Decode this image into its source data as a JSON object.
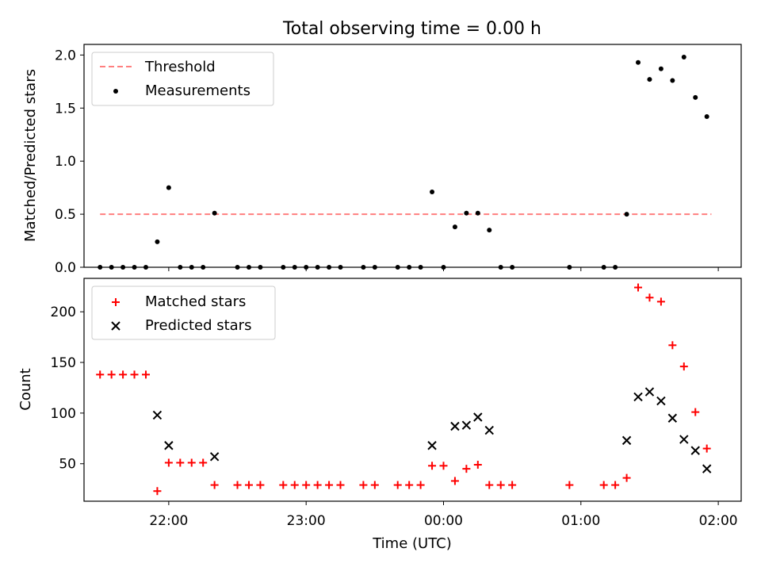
{
  "title": "Total observing time = 0.00 h",
  "chart_data": [
    {
      "type": "scatter",
      "ylabel": "Matched/Predicted stars",
      "ylim": [
        0,
        2.1
      ],
      "yticks": [
        0.0,
        0.5,
        1.0,
        1.5,
        2.0
      ],
      "ytick_labels": [
        "0.0",
        "0.5",
        "1.0",
        "1.5",
        "2.0"
      ],
      "xlim": [
        "21:23",
        "02:10"
      ],
      "legend_position": "upper-left",
      "legend": [
        {
          "label": "Threshold",
          "style": "dashed-line",
          "color": "#ff7f7f"
        },
        {
          "label": "Measurements",
          "style": "dot",
          "color": "#000000"
        }
      ],
      "threshold": {
        "value": 0.5,
        "x": [
          "21:30",
          "01:57"
        ]
      },
      "series": [
        {
          "name": "Measurements",
          "color": "#000000",
          "points": [
            [
              "21:30",
              0.0
            ],
            [
              "21:35",
              0.0
            ],
            [
              "21:40",
              0.0
            ],
            [
              "21:45",
              0.0
            ],
            [
              "21:50",
              0.0
            ],
            [
              "21:55",
              0.24
            ],
            [
              "22:00",
              0.75
            ],
            [
              "22:05",
              0.0
            ],
            [
              "22:10",
              0.0
            ],
            [
              "22:15",
              0.0
            ],
            [
              "22:20",
              0.51
            ],
            [
              "22:30",
              0.0
            ],
            [
              "22:35",
              0.0
            ],
            [
              "22:40",
              0.0
            ],
            [
              "22:50",
              0.0
            ],
            [
              "22:55",
              0.0
            ],
            [
              "23:00",
              0.0
            ],
            [
              "23:05",
              0.0
            ],
            [
              "23:10",
              0.0
            ],
            [
              "23:15",
              0.0
            ],
            [
              "23:25",
              0.0
            ],
            [
              "23:30",
              0.0
            ],
            [
              "23:40",
              0.0
            ],
            [
              "23:45",
              0.0
            ],
            [
              "23:50",
              0.0
            ],
            [
              "23:55",
              0.71
            ],
            [
              "00:00",
              0.0
            ],
            [
              "00:05",
              0.38
            ],
            [
              "00:10",
              0.51
            ],
            [
              "00:15",
              0.51
            ],
            [
              "00:20",
              0.35
            ],
            [
              "00:25",
              0.0
            ],
            [
              "00:30",
              0.0
            ],
            [
              "00:55",
              0.0
            ],
            [
              "01:10",
              0.0
            ],
            [
              "01:15",
              0.0
            ],
            [
              "01:20",
              0.5
            ],
            [
              "01:25",
              1.93
            ],
            [
              "01:30",
              1.77
            ],
            [
              "01:35",
              1.87
            ],
            [
              "01:40",
              1.76
            ],
            [
              "01:45",
              1.98
            ],
            [
              "01:50",
              1.6
            ],
            [
              "01:55",
              1.42
            ]
          ]
        }
      ]
    },
    {
      "type": "scatter",
      "xlabel": "Time (UTC)",
      "ylabel": "Count",
      "ylim": [
        13,
        233
      ],
      "yticks": [
        50,
        100,
        150,
        200
      ],
      "ytick_labels": [
        "50",
        "100",
        "150",
        "200"
      ],
      "xlim": [
        "21:23",
        "02:10"
      ],
      "xticks": [
        "22:00",
        "23:00",
        "00:00",
        "01:00",
        "02:00"
      ],
      "legend_position": "upper-left",
      "series": [
        {
          "name": "Matched stars",
          "marker": "plus",
          "color": "#ff0000",
          "points": [
            [
              "21:30",
              138
            ],
            [
              "21:35",
              138
            ],
            [
              "21:40",
              138
            ],
            [
              "21:45",
              138
            ],
            [
              "21:50",
              138
            ],
            [
              "21:55",
              23
            ],
            [
              "22:00",
              51
            ],
            [
              "22:05",
              51
            ],
            [
              "22:10",
              51
            ],
            [
              "22:15",
              51
            ],
            [
              "22:20",
              29
            ],
            [
              "22:30",
              29
            ],
            [
              "22:35",
              29
            ],
            [
              "22:40",
              29
            ],
            [
              "22:50",
              29
            ],
            [
              "22:55",
              29
            ],
            [
              "23:00",
              29
            ],
            [
              "23:05",
              29
            ],
            [
              "23:10",
              29
            ],
            [
              "23:15",
              29
            ],
            [
              "23:25",
              29
            ],
            [
              "23:30",
              29
            ],
            [
              "23:40",
              29
            ],
            [
              "23:45",
              29
            ],
            [
              "23:50",
              29
            ],
            [
              "23:55",
              48
            ],
            [
              "00:00",
              48
            ],
            [
              "00:05",
              33
            ],
            [
              "00:10",
              45
            ],
            [
              "00:15",
              49
            ],
            [
              "00:20",
              29
            ],
            [
              "00:25",
              29
            ],
            [
              "00:30",
              29
            ],
            [
              "00:55",
              29
            ],
            [
              "01:10",
              29
            ],
            [
              "01:15",
              29
            ],
            [
              "01:20",
              36
            ],
            [
              "01:25",
              224
            ],
            [
              "01:30",
              214
            ],
            [
              "01:35",
              210
            ],
            [
              "01:40",
              167
            ],
            [
              "01:45",
              146
            ],
            [
              "01:50",
              101
            ],
            [
              "01:55",
              65
            ]
          ]
        },
        {
          "name": "Predicted stars",
          "marker": "x",
          "color": "#000000",
          "points": [
            [
              "21:55",
              98
            ],
            [
              "22:00",
              68
            ],
            [
              "22:20",
              57
            ],
            [
              "23:55",
              68
            ],
            [
              "00:05",
              87
            ],
            [
              "00:10",
              88
            ],
            [
              "00:15",
              96
            ],
            [
              "00:20",
              83
            ],
            [
              "01:20",
              73
            ],
            [
              "01:25",
              116
            ],
            [
              "01:30",
              121
            ],
            [
              "01:35",
              112
            ],
            [
              "01:40",
              95
            ],
            [
              "01:45",
              74
            ],
            [
              "01:50",
              63
            ],
            [
              "01:55",
              45
            ]
          ]
        }
      ]
    }
  ]
}
